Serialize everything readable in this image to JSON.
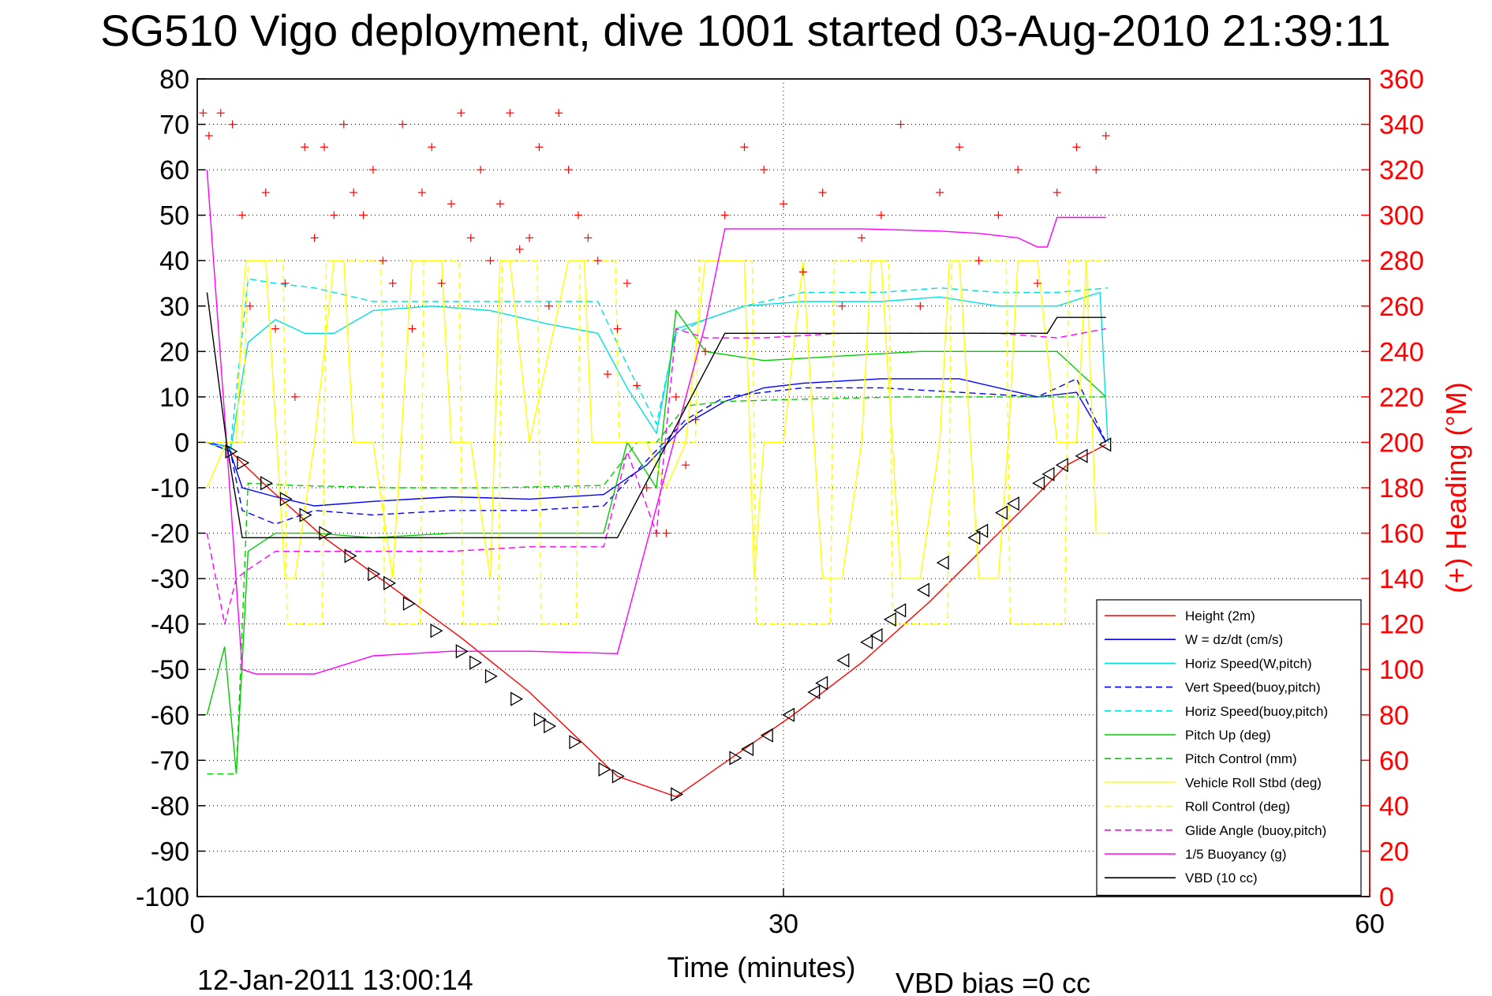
{
  "chart_data": {
    "type": "line",
    "title": "SG510 Vigo deployment, dive 1001 started 03-Aug-2010 21:39:11",
    "xlabel": "Time (minutes)",
    "ylabel_right": "(+) Heading (°M)",
    "xlim": [
      0,
      60
    ],
    "ylim": [
      -100,
      80
    ],
    "ylim_right": [
      0,
      360
    ],
    "xticks": [
      0,
      30,
      60
    ],
    "yticks": [
      80,
      70,
      60,
      50,
      40,
      30,
      20,
      10,
      0,
      -10,
      -20,
      -30,
      -40,
      -50,
      -60,
      -70,
      -80,
      -90,
      -100
    ],
    "yticks_right": [
      360,
      340,
      320,
      300,
      280,
      260,
      240,
      220,
      200,
      180,
      160,
      140,
      120,
      100,
      80,
      60,
      40,
      20,
      0
    ],
    "grid": true,
    "legend_position": "lower-right",
    "footer_date": "12-Jan-2011 13:00:14",
    "footer_bias": "VBD bias =0 cc",
    "series": [
      {
        "name": "Height (2m)",
        "color": "#ff0000",
        "style": "solid",
        "x": [
          0.5,
          1.7,
          3.5,
          6.5,
          10,
          13.5,
          17,
          21.5,
          24.5,
          27.5,
          30.5,
          34,
          37.5,
          41,
          44.5,
          46.5
        ],
        "y": [
          0,
          -2,
          -9.5,
          -21,
          -32,
          -43,
          -55,
          -73.5,
          -78,
          -69,
          -60,
          -48.5,
          -35,
          -20,
          -5,
          -0.5
        ]
      },
      {
        "name": "W = dz/dt (cm/s)",
        "color": "#0000ff",
        "style": "solid",
        "x": [
          0.5,
          1.6,
          2.3,
          4,
          6,
          9,
          13,
          17,
          20.8,
          23,
          25,
          27,
          29,
          31,
          35,
          39,
          43,
          45,
          46.5
        ],
        "y": [
          0,
          -1,
          -10,
          -12,
          -14,
          -13,
          -12,
          -12.5,
          -11.5,
          -5,
          4,
          9,
          12,
          13,
          14,
          14,
          10,
          11,
          0
        ]
      },
      {
        "name": "Horiz Speed(W,pitch)",
        "color": "#00e0e0",
        "style": "solid",
        "x": [
          0.5,
          1.7,
          2.6,
          4,
          5.5,
          7,
          9,
          12,
          15,
          18,
          20.5,
          22,
          23.5,
          24.5,
          26,
          28,
          31,
          35,
          38,
          41,
          44,
          46.2,
          46.6
        ],
        "y": [
          0,
          -2,
          22,
          27,
          24,
          24,
          29,
          30,
          29,
          26,
          24,
          12,
          2,
          25,
          27,
          30,
          31,
          31,
          32,
          30,
          30,
          33,
          0
        ]
      },
      {
        "name": "Vert Speed(buoy,pitch)",
        "color": "#0000ff",
        "style": "dashed",
        "x": [
          0.5,
          1.7,
          2.3,
          4,
          6,
          9,
          13,
          17,
          20.8,
          23,
          25,
          27,
          29,
          31,
          35,
          39,
          43,
          45,
          46.5
        ],
        "y": [
          0,
          -2,
          -15,
          -18,
          -15,
          -16,
          -15,
          -15,
          -14,
          -4,
          5,
          10,
          11,
          12,
          12,
          11,
          10,
          14,
          0
        ]
      },
      {
        "name": "Horiz Speed(buoy,pitch)",
        "color": "#00e0e0",
        "style": "dashed",
        "x": [
          0.5,
          1.7,
          2.6,
          4,
          6,
          9,
          12,
          15,
          18,
          20.5,
          22,
          23.5,
          24.5,
          26,
          28,
          31,
          35,
          38,
          41,
          44,
          46.6
        ],
        "y": [
          0,
          -1,
          36,
          35,
          34,
          31,
          31,
          31,
          31,
          31,
          17,
          4,
          24,
          27,
          30,
          33,
          33,
          34,
          33,
          33,
          34
        ]
      },
      {
        "name": "Pitch Up (deg)",
        "color": "#00cc00",
        "style": "solid",
        "x": [
          0.5,
          1.4,
          2,
          2.6,
          4,
          6,
          9,
          13,
          17,
          20.8,
          22,
          23.5,
          24.5,
          26,
          29,
          33,
          37,
          41,
          44,
          46.5
        ],
        "y": [
          -60,
          -45,
          -73,
          -24,
          -20,
          -20,
          -21,
          -20,
          -20,
          -20,
          0,
          -10,
          29,
          20,
          18,
          19,
          20,
          20,
          20,
          10
        ]
      },
      {
        "name": "Pitch Control (mm)",
        "color": "#00cc00",
        "style": "dashed",
        "x": [
          0.5,
          1.4,
          2,
          2.6,
          5,
          10,
          15,
          20.8,
          22.5,
          23.5,
          25,
          27,
          31,
          36,
          41,
          46.5
        ],
        "y": [
          -73,
          -73,
          -73,
          -9,
          -9.5,
          -10,
          -10,
          -9.5,
          0,
          0,
          8,
          9,
          9.5,
          10,
          10,
          10
        ]
      },
      {
        "name": "Vehicle Roll Stbd (deg)",
        "color": "#ffff00",
        "style": "solid",
        "x": [
          0.5,
          1.5,
          2,
          2.3,
          2.5,
          3.5,
          4.5,
          5,
          6,
          7,
          7.5,
          8,
          9,
          10,
          11,
          12.5,
          13,
          14,
          15,
          15.5,
          16,
          17,
          19,
          19.8,
          20.2,
          22,
          23,
          24,
          25,
          26,
          28,
          28.5,
          29,
          30,
          31,
          32,
          33,
          34,
          34.5,
          35,
          36,
          37,
          38,
          38.5,
          39,
          40,
          41,
          41.5,
          42,
          43,
          44,
          45,
          45.5,
          46,
          46.6
        ],
        "y": [
          -10,
          0,
          0,
          30,
          40,
          40,
          -30,
          -30,
          0,
          40,
          40,
          0,
          0,
          -30,
          40,
          40,
          0,
          0,
          -30,
          40,
          40,
          0,
          40,
          40,
          0,
          0,
          0,
          -10,
          0,
          40,
          40,
          -30,
          0,
          0,
          40,
          -30,
          -30,
          0,
          40,
          40,
          -30,
          -30,
          0,
          40,
          40,
          -30,
          -30,
          0,
          40,
          40,
          0,
          0,
          40,
          -20,
          -20
        ]
      },
      {
        "name": "Roll Control (deg)",
        "color": "#ffff00",
        "style": "dashed",
        "x": [
          0.5,
          2.3,
          2.6,
          4.4,
          4.6,
          6.4,
          6.6,
          9.4,
          9.6,
          11.4,
          11.6,
          13.4,
          13.6,
          15.4,
          15.6,
          17.4,
          17.6,
          19.4,
          19.6,
          21.4,
          21.6,
          25.5,
          25.7,
          28.4,
          28.6,
          32.4,
          32.6,
          35.4,
          35.6,
          38.4,
          38.6,
          41.4,
          41.6,
          44.4,
          44.6,
          46.6
        ],
        "y": [
          0,
          0,
          40,
          40,
          -40,
          -40,
          40,
          40,
          -40,
          -40,
          40,
          40,
          -40,
          -40,
          40,
          40,
          -40,
          -40,
          40,
          40,
          0,
          0,
          40,
          40,
          -40,
          -40,
          40,
          40,
          -40,
          -40,
          40,
          40,
          -40,
          -40,
          40,
          40
        ]
      },
      {
        "name": "Glide Angle (buoy,pitch)",
        "color": "#ff00ff",
        "style": "dashed",
        "x": [
          0.5,
          1.4,
          2,
          2.6,
          4,
          6,
          9,
          13,
          17,
          20.8,
          22,
          23.5,
          24.5,
          26,
          29,
          33,
          37,
          41,
          44,
          46.5
        ],
        "y": [
          -20,
          -40,
          -30,
          -28,
          -24,
          -24,
          -24,
          -24,
          -23,
          -23,
          -2,
          -20,
          25,
          23,
          23,
          24,
          24,
          24,
          23,
          25
        ]
      },
      {
        "name": "1/5 Buoyancy (g)",
        "color": "#ff00ff",
        "style": "solid",
        "x": [
          0.5,
          1.5,
          2.3,
          3,
          6,
          9,
          13,
          17,
          21.5,
          26,
          27,
          30,
          34,
          38,
          40,
          42,
          43,
          43.5,
          44,
          46.5
        ],
        "y": [
          60,
          0,
          -50,
          -51,
          -51,
          -47,
          -46,
          -46,
          -46.5,
          26,
          47,
          47,
          47,
          46.5,
          46,
          45,
          43,
          43,
          49.5,
          49.5
        ]
      },
      {
        "name": "VBD (10 cc)",
        "color": "#000000",
        "style": "solid",
        "x": [
          0.5,
          1.5,
          2.3,
          5,
          10,
          15,
          21.5,
          27,
          30,
          35,
          40,
          43.5,
          44,
          46.5
        ],
        "y": [
          33,
          0,
          -21,
          -21,
          -21,
          -21,
          -21,
          24,
          24,
          24,
          24,
          24,
          27.5,
          27.5
        ]
      }
    ],
    "heading_points": {
      "name": "Heading",
      "color": "#ff0000",
      "marker": "+",
      "axis": "right",
      "x": [
        0.3,
        0.6,
        1.2,
        1.8,
        2.3,
        2.7,
        3.5,
        4,
        4.5,
        5,
        5.5,
        6,
        6.5,
        7,
        7.5,
        8,
        8.5,
        9,
        9.5,
        10,
        10.5,
        11,
        11.5,
        12,
        12.5,
        13,
        13.5,
        14,
        14.5,
        15,
        15.5,
        16,
        16.5,
        17,
        17.5,
        18,
        18.5,
        19,
        19.5,
        20,
        20.5,
        21,
        21.5,
        22,
        22.5,
        23,
        23.5,
        24,
        24.5,
        25,
        25.5,
        26,
        27,
        28,
        29,
        30,
        31,
        32,
        33,
        34,
        35,
        36,
        37,
        38,
        39,
        40,
        41,
        42,
        43,
        44,
        45,
        46,
        46.5
      ],
      "y": [
        345,
        335,
        345,
        340,
        300,
        260,
        310,
        250,
        270,
        220,
        330,
        290,
        330,
        300,
        340,
        310,
        300,
        320,
        280,
        270,
        340,
        250,
        310,
        330,
        270,
        305,
        345,
        290,
        320,
        280,
        305,
        345,
        285,
        290,
        330,
        260,
        345,
        320,
        300,
        290,
        280,
        230,
        250,
        270,
        225,
        180,
        160,
        160,
        220,
        190,
        210,
        240,
        300,
        330,
        320,
        305,
        275,
        310,
        260,
        290,
        300,
        340,
        260,
        310,
        330,
        280,
        300,
        320,
        270,
        310,
        330,
        320,
        335
      ]
    },
    "markers": {
      "name": "Triangles",
      "color": "#000000",
      "marker": "triangle",
      "x": [
        1.7,
        2.3,
        3.5,
        4.5,
        5.5,
        6.5,
        7.8,
        9,
        9.8,
        10.8,
        12.2,
        13.5,
        14.2,
        15,
        16.3,
        17.5,
        18,
        19.3,
        20.8,
        21.5,
        24.5,
        27.5,
        28.2,
        29.2,
        30.3,
        31.6,
        32,
        33.1,
        34.3,
        34.8,
        35.5,
        36,
        37.2,
        38.2,
        39.8,
        40.2,
        41.2,
        41.8,
        43.1,
        43.6,
        44.3,
        45.3,
        46.5
      ],
      "y": [
        -2,
        -4.5,
        -9,
        -12.5,
        -16,
        -20,
        -25,
        -29,
        -31,
        -35.5,
        -41.5,
        -46,
        -48.5,
        -51.5,
        -56.5,
        -61,
        -62.5,
        -66,
        -72,
        -73.5,
        -77.5,
        -69.5,
        -67.5,
        -64.5,
        -60,
        -55,
        -53,
        -48,
        -44,
        -42.5,
        -39,
        -37,
        -32.5,
        -26.5,
        -21,
        -19.5,
        -15.5,
        -13.5,
        -9,
        -7,
        -5,
        -3,
        -0.5
      ]
    }
  }
}
